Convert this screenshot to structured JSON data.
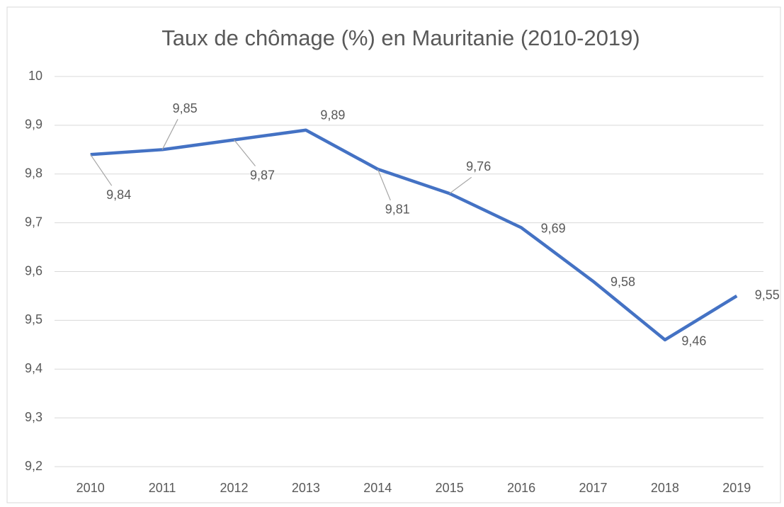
{
  "chart_data": {
    "type": "line",
    "title": "Taux de chômage (%) en Mauritanie (2010-2019)",
    "categories": [
      "2010",
      "2011",
      "2012",
      "2013",
      "2014",
      "2015",
      "2016",
      "2017",
      "2018",
      "2019"
    ],
    "series": [
      {
        "name": "Taux de chômage",
        "color": "#4472c4",
        "values": [
          9.84,
          9.85,
          9.87,
          9.89,
          9.81,
          9.76,
          9.69,
          9.58,
          9.46,
          9.55
        ],
        "value_labels": [
          "9,84",
          "9,85",
          "9,87",
          "9,89",
          "9,81",
          "9,76",
          "9,69",
          "9,58",
          "9,46",
          "9,55"
        ]
      }
    ],
    "ylim": [
      9.2,
      10
    ],
    "yticks": [
      {
        "value": 9.2,
        "label": "9,2"
      },
      {
        "value": 9.3,
        "label": "9,3"
      },
      {
        "value": 9.4,
        "label": "9,4"
      },
      {
        "value": 9.5,
        "label": "9,5"
      },
      {
        "value": 9.6,
        "label": "9,6"
      },
      {
        "value": 9.7,
        "label": "9,7"
      },
      {
        "value": 9.8,
        "label": "9,8"
      },
      {
        "value": 9.9,
        "label": "9,9"
      },
      10
    ],
    "grid": true
  }
}
